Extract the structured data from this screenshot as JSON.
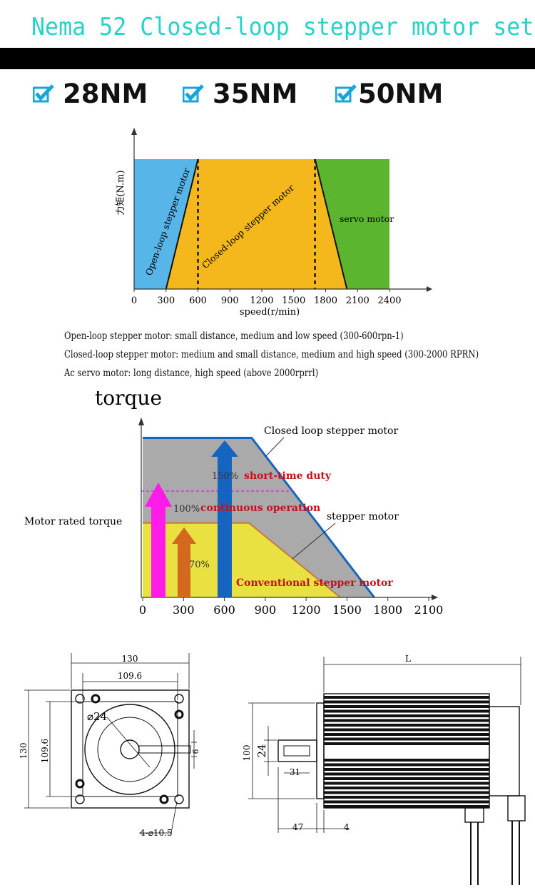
{
  "header": {
    "title": "Nema 52 Closed-loop stepper motor set"
  },
  "options": [
    {
      "label": "28NM"
    },
    {
      "label": "35NM"
    },
    {
      "label": "50NM"
    }
  ],
  "colors": {
    "check": "#16a6d9",
    "title": "#2ad1c9"
  },
  "chart_data": [
    {
      "type": "area",
      "ylabel": "力矩(N.m)",
      "xlabel": "speed(r/min)",
      "x_ticks": [
        "0",
        "300",
        "600",
        "900",
        "1200",
        "1500",
        "1800",
        "2100",
        "2400"
      ],
      "xlim": [
        0,
        2400
      ],
      "regions": [
        {
          "name": "Open-loop stepper motor",
          "color": "#57b5e8",
          "x_start": 0,
          "x_end_top": 600,
          "x_end_bottom": 300
        },
        {
          "name": "Closed-loop stepper motor",
          "color": "#f5b81c",
          "x_start_top": 600,
          "x_start_bottom": 300,
          "x_end_top": 1700,
          "x_end_bottom": 2000
        },
        {
          "name": "servo motor",
          "color": "#5bb52e",
          "x_start_top": 1700,
          "x_start_bottom": 2000,
          "x_end": 2400
        }
      ],
      "dashed_lines_x": [
        600,
        1700
      ]
    },
    {
      "type": "area",
      "ylabel": "torque",
      "x_ticks": [
        "0",
        "300",
        "600",
        "900",
        "1200",
        "1500",
        "1800",
        "2100"
      ],
      "xlim": [
        0,
        2100
      ],
      "rated_label": "Motor rated torque",
      "series": [
        {
          "name": "Closed loop stepper motor",
          "color": "#aaaaaa",
          "plateau_pct": 150,
          "plateau_end": 800,
          "zero_at": 1700
        },
        {
          "name": "stepper motor",
          "color": "#e9e041",
          "plateau_pct": 70,
          "plateau_end": 780,
          "zero_at": 1450
        }
      ],
      "annotations": [
        {
          "pct": "150%",
          "text": "short-time duty",
          "arrow_color": "#1565c0"
        },
        {
          "pct": "100%",
          "text": "continuous operation",
          "arrow_color": "#ff1ce9"
        },
        {
          "pct": "70%",
          "text": "Conventional stepper motor",
          "arrow_color": "#d2691e"
        }
      ]
    }
  ],
  "notes": [
    "Open-loop stepper motor: small distance, medium and low speed (300-600rpn-1)",
    "Closed-loop stepper motor: medium and small distance, medium and high speed (300-2000 RPRN)",
    "Ac servo motor: long distance, high speed (above 2000rprrl)"
  ],
  "drawing": {
    "front": {
      "width_outer": "130",
      "width_inner": "109.6",
      "height_outer": "130",
      "height_inner": "109.6",
      "shaft_dia": "⌀24",
      "key": "6",
      "holes": "4-⌀10.5"
    },
    "side": {
      "length": "L",
      "flange": "100",
      "shaft": "24",
      "key_len": "31",
      "shaft_len": "47",
      "flange_thk": "4"
    }
  }
}
